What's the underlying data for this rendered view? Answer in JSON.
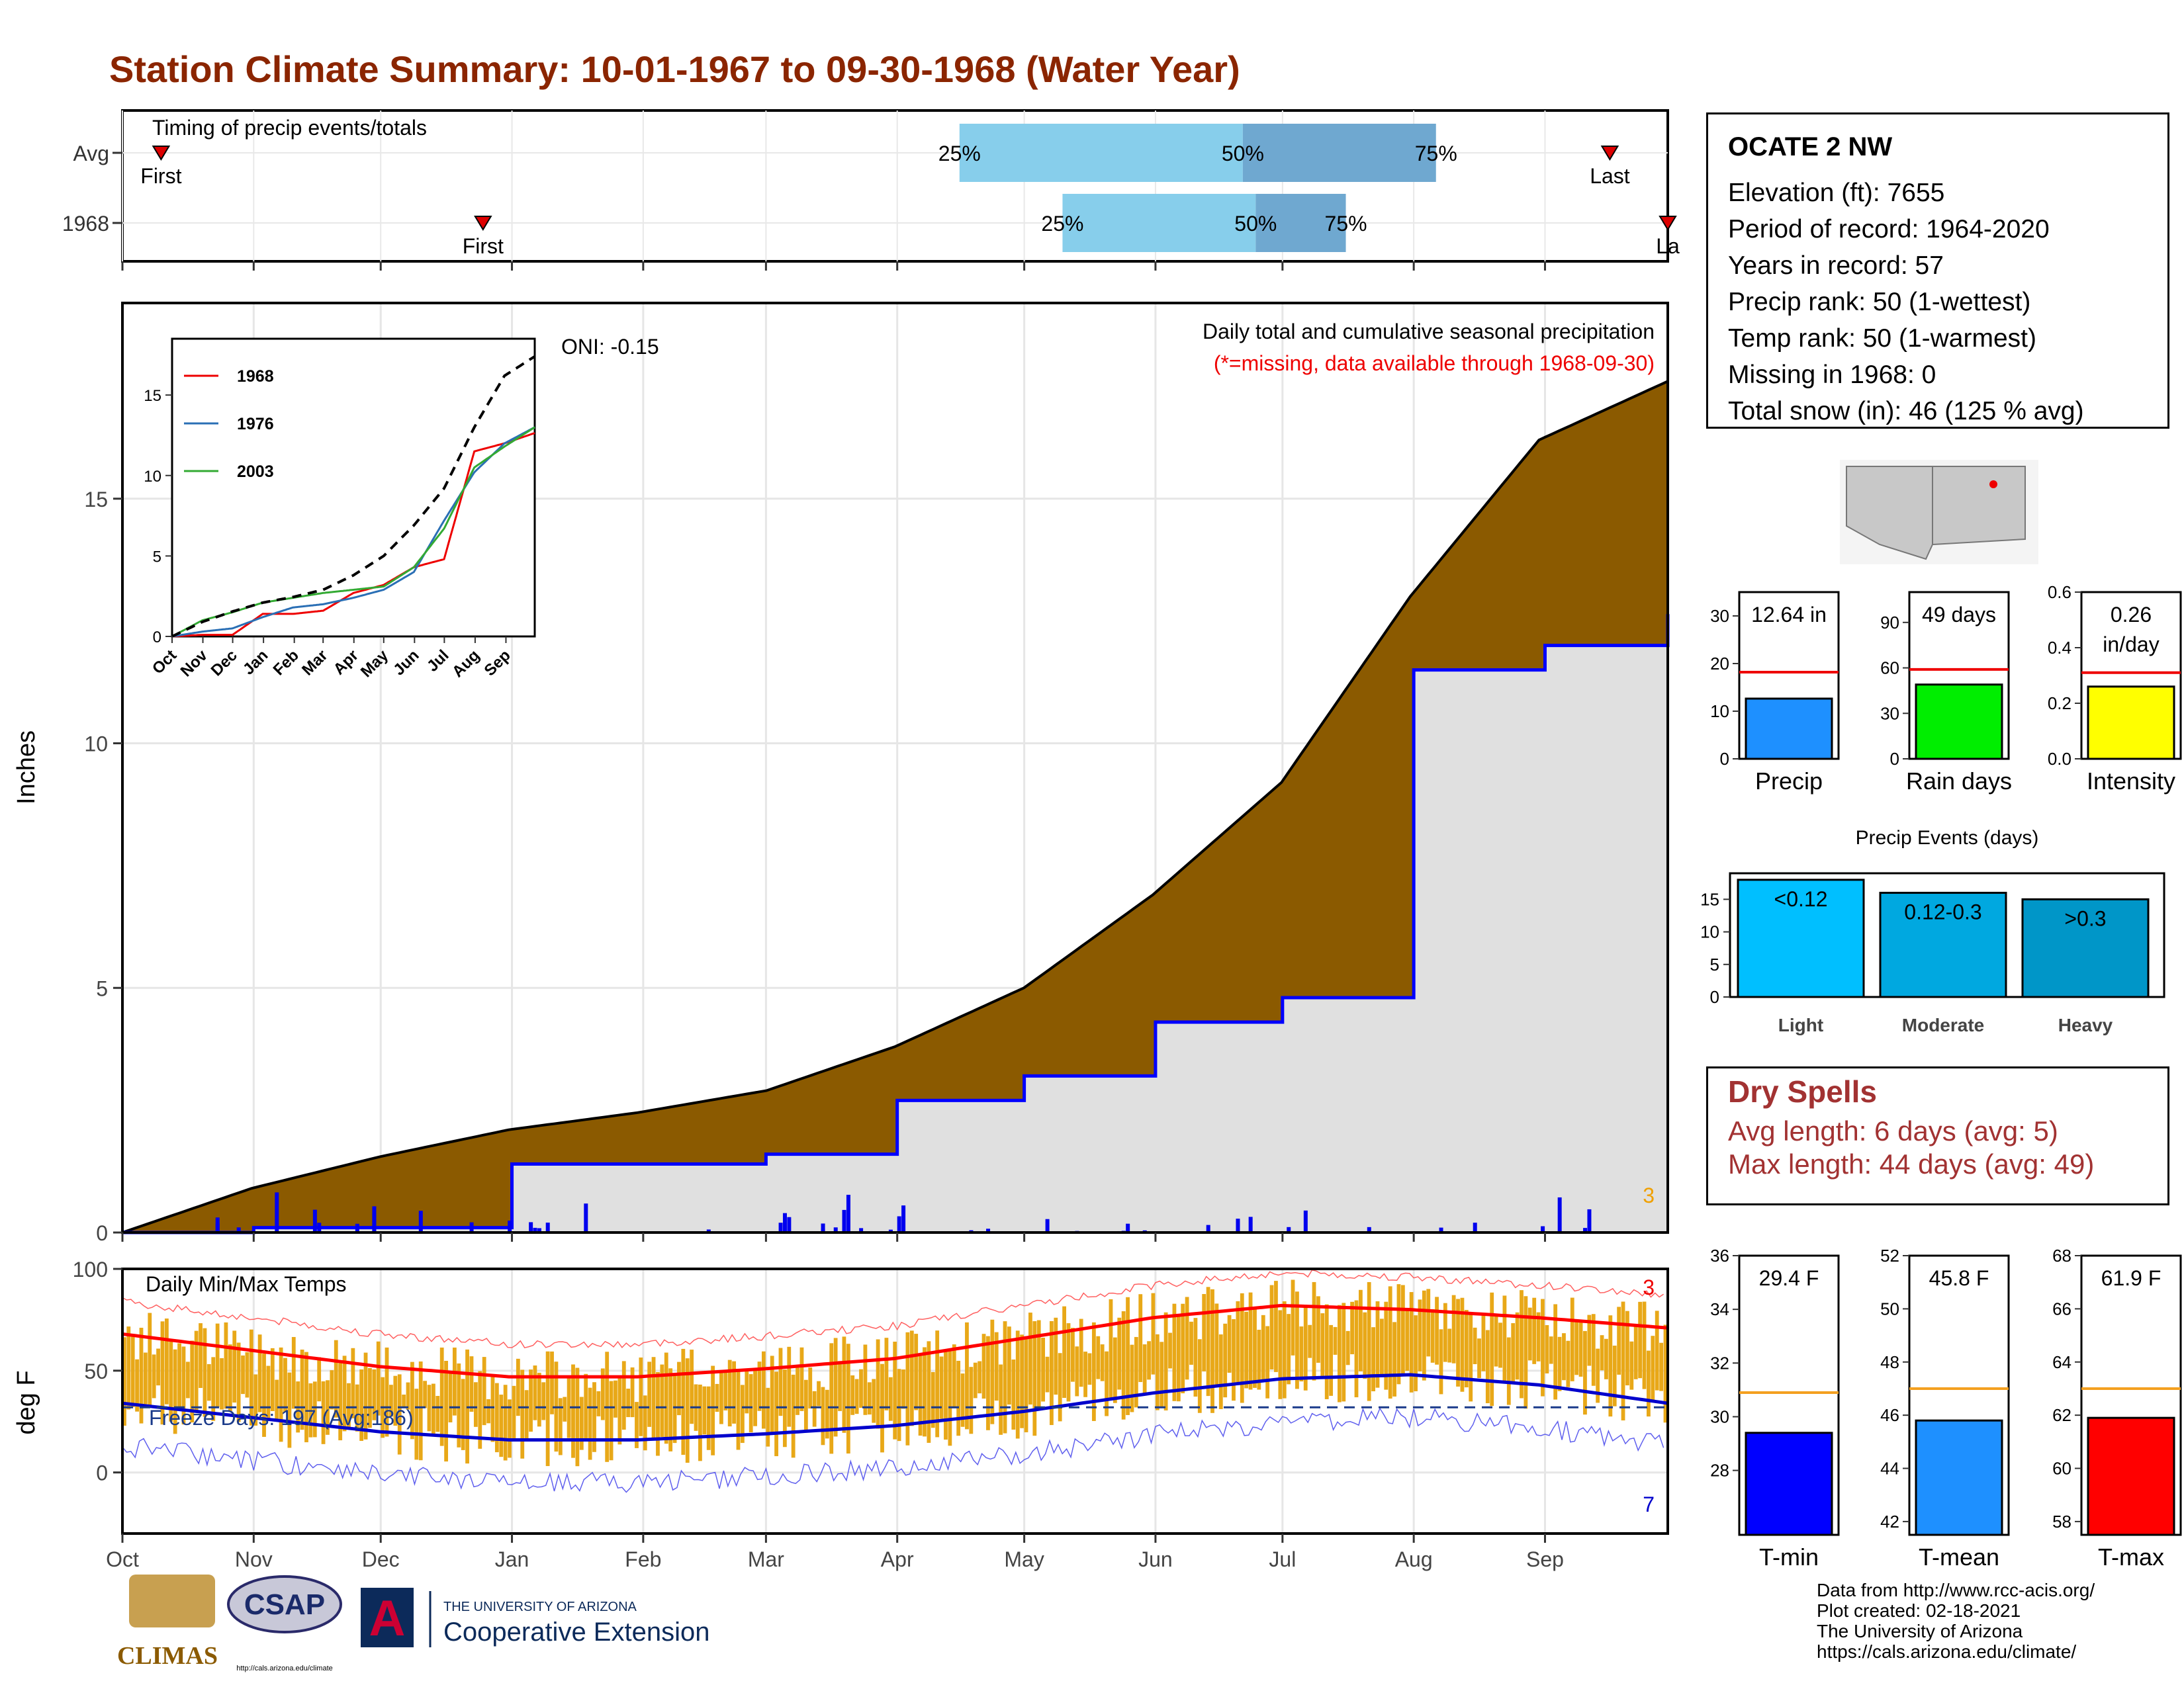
{
  "title": "Station Climate Summary: 10-01-1967 to 09-30-1968 (Water Year)",
  "colors": {
    "title": "#8B2500",
    "precip_fill": "#8B5A00",
    "cum_1968": "#0000ff",
    "gray_fill": "#e0e0e0",
    "temp_bar": "#e8a818",
    "tmax_avg": "#ff0000",
    "tmin_avg": "#0000cc",
    "light_blue": "#87ceeb",
    "steel_blue": "#6fa8d0"
  },
  "timing": {
    "title": "Timing of precip events/totals",
    "rows": [
      {
        "label": "Avg",
        "first_label": "First",
        "last_label": "Last",
        "first": 0.3,
        "last": 11.55,
        "p25": 6.5,
        "p50": 8.7,
        "p75": 10.2,
        "p25_label": "25%",
        "p50_label": "50%",
        "p75_label": "75%"
      },
      {
        "label": "1968",
        "first_label": "First",
        "last_label": "La",
        "first": 2.8,
        "last": 12.0,
        "p25": 7.3,
        "p50": 8.8,
        "p75": 9.5,
        "p25_label": "25%",
        "p50_label": "50%",
        "p75_label": "75%"
      }
    ]
  },
  "precip_panel": {
    "ylabel": "Inches",
    "yticks": [
      "0",
      "5",
      "10",
      "15"
    ],
    "caption": "Daily total and cumulative seasonal precipitation",
    "missing_note": "(*=missing, data available through 1968-09-30)",
    "oni": "ONI: -0.15",
    "count_label": "3"
  },
  "temp_panel": {
    "ylabel": "deg F",
    "yticks": [
      "0",
      "50",
      "100"
    ],
    "caption": "Daily Min/Max Temps",
    "freeze": "Freeze Days: 197 (Avg:186)",
    "count_max": "3",
    "count_min": "7"
  },
  "x_months": [
    "Oct",
    "Nov",
    "Dec",
    "Jan",
    "Feb",
    "Mar",
    "Apr",
    "May",
    "Jun",
    "Jul",
    "Aug",
    "Sep"
  ],
  "inset": {
    "months": [
      "Oct",
      "Nov",
      "Dec",
      "Jan",
      "Feb",
      "Mar",
      "Apr",
      "May",
      "Jun",
      "Jul",
      "Aug",
      "Sep"
    ],
    "yticks": [
      "0",
      "5",
      "10",
      "15"
    ],
    "legend": [
      "1968",
      "1976",
      "2003"
    ]
  },
  "station": {
    "name": "OCATE 2 NW",
    "lines": [
      "Elevation (ft): 7655",
      "Period of record: 1964-2020",
      "Years in record: 57",
      "Precip rank: 50 (1-wettest)",
      "Temp rank: 50 (1-warmest)",
      "Missing in 1968: 0",
      "Total snow (in): 46 (125 % avg)"
    ]
  },
  "summary_bars": [
    {
      "label": "Precip",
      "value_label": "12.64 in",
      "value": 12.64,
      "avg": 18.2,
      "ymax": 35,
      "ticks": [
        "0",
        "10",
        "20",
        "30"
      ],
      "color": "#1e90ff"
    },
    {
      "label": "Rain days",
      "value_label": "49 days",
      "value": 49,
      "avg": 59,
      "ymax": 110,
      "ticks": [
        "0",
        "30",
        "60",
        "90"
      ],
      "color": "#00ee00"
    },
    {
      "label": "Intensity",
      "value_label": "0.26 in/day",
      "value": 0.26,
      "avg": 0.31,
      "ymax": 0.6,
      "ticks": [
        "0.0",
        "0.2",
        "0.4",
        "0.6"
      ],
      "color": "#ffff00"
    }
  ],
  "events": {
    "title": "Precip Events (days)",
    "categories": [
      "Light",
      "Moderate",
      "Heavy"
    ],
    "labels": [
      "<0.12",
      "0.12-0.3",
      ">0.3"
    ],
    "values": [
      18,
      16,
      15
    ],
    "yticks": [
      "0",
      "5",
      "10",
      "15"
    ]
  },
  "dry_spells": {
    "title": "Dry Spells",
    "avg": "Avg length: 6 days (avg: 5)",
    "max": "Max length: 44 days (avg: 49)"
  },
  "temp_bars": [
    {
      "label": "T-min",
      "value_label": "29.4 F",
      "value": 29.4,
      "avg": 30.9,
      "ymin": 25.6,
      "ymax": 36,
      "ticks": [
        "28",
        "30",
        "32",
        "34",
        "36"
      ],
      "color": "#0000ff"
    },
    {
      "label": "T-mean",
      "value_label": "45.8 F",
      "value": 45.8,
      "avg": 47,
      "ymin": 41.5,
      "ymax": 52,
      "ticks": [
        "42",
        "44",
        "46",
        "48",
        "50",
        "52"
      ],
      "color": "#1e90ff"
    },
    {
      "label": "T-max",
      "value_label": "61.9 F",
      "value": 61.9,
      "avg": 63,
      "ymin": 57.5,
      "ymax": 68,
      "ticks": [
        "58",
        "60",
        "62",
        "64",
        "66",
        "68"
      ],
      "color": "#ff0000"
    }
  ],
  "credits": [
    "Data from http://www.rcc-acis.org/",
    "Plot created: 02-18-2021",
    "The University of Arizona",
    "https://cals.arizona.edu/climate/"
  ],
  "logos": {
    "climas": "CLIMAS",
    "csap": "CSAP",
    "csap_url": "http://cals.arizona.edu/climate",
    "ua_small": "THE UNIVERSITY OF ARIZONA",
    "ua_big": "Cooperative Extension"
  },
  "chart_data": [
    {
      "type": "area",
      "title": "Daily total and cumulative seasonal precipitation",
      "ylabel": "Inches",
      "ylim": [
        0,
        19
      ],
      "x": [
        "Oct",
        "Nov",
        "Dec",
        "Jan",
        "Feb",
        "Mar",
        "Apr",
        "May",
        "Jun",
        "Jul",
        "Aug",
        "Sep",
        "Sep-30"
      ],
      "series": [
        {
          "name": "avg cumulative",
          "values": [
            0,
            0.9,
            1.55,
            2.1,
            2.45,
            2.9,
            3.8,
            5.0,
            6.9,
            9.2,
            13.0,
            16.2,
            17.4
          ]
        },
        {
          "name": "1968 cumulative",
          "values": [
            0,
            0.1,
            0.1,
            1.4,
            1.4,
            1.6,
            2.7,
            3.2,
            4.3,
            4.8,
            11.5,
            12.0,
            12.64
          ]
        }
      ]
    },
    {
      "type": "line",
      "title": "Daily Min/Max Temps",
      "ylabel": "deg F",
      "ylim": [
        -30,
        100
      ],
      "x": [
        "Oct",
        "Nov",
        "Dec",
        "Jan",
        "Feb",
        "Mar",
        "Apr",
        "May",
        "Jun",
        "Jul",
        "Aug",
        "Sep",
        "Sep-30"
      ],
      "series": [
        {
          "name": "avg max",
          "values": [
            68,
            60,
            52,
            47,
            47,
            51,
            56,
            66,
            76,
            82,
            80,
            76,
            71
          ]
        },
        {
          "name": "avg min",
          "values": [
            34,
            27,
            20,
            16,
            16,
            19,
            23,
            30,
            39,
            46,
            48,
            43,
            34
          ]
        }
      ]
    },
    {
      "type": "line",
      "title": "",
      "xlabel": "",
      "ylim": [
        0,
        18.5
      ],
      "x": [
        "Oct",
        "Nov",
        "Dec",
        "Jan",
        "Feb",
        "Mar",
        "Apr",
        "May",
        "Jun",
        "Jul",
        "Aug",
        "Sep",
        "Sep-30"
      ],
      "series": [
        {
          "name": "1968",
          "values": [
            0,
            0.1,
            0.1,
            1.4,
            1.4,
            1.6,
            2.7,
            3.2,
            4.3,
            4.8,
            11.5,
            12.0,
            12.64
          ]
        },
        {
          "name": "1976",
          "values": [
            0,
            0.3,
            0.5,
            1.2,
            1.8,
            2.0,
            2.4,
            2.9,
            4.0,
            7.2,
            10.2,
            12.0,
            13.0
          ]
        },
        {
          "name": "2003",
          "values": [
            0,
            1.0,
            1.5,
            2.1,
            2.4,
            2.7,
            2.9,
            3.1,
            4.3,
            6.7,
            10.5,
            11.8,
            13.0
          ]
        },
        {
          "name": "avg",
          "values": [
            0,
            0.9,
            1.55,
            2.1,
            2.45,
            2.9,
            3.8,
            5.0,
            6.9,
            9.2,
            13.0,
            16.2,
            17.4
          ]
        }
      ]
    },
    {
      "type": "bar",
      "title": "Precip Events (days)",
      "categories": [
        "Light",
        "Moderate",
        "Heavy"
      ],
      "values": [
        18,
        16,
        15
      ],
      "ylim": [
        0,
        19
      ]
    }
  ]
}
